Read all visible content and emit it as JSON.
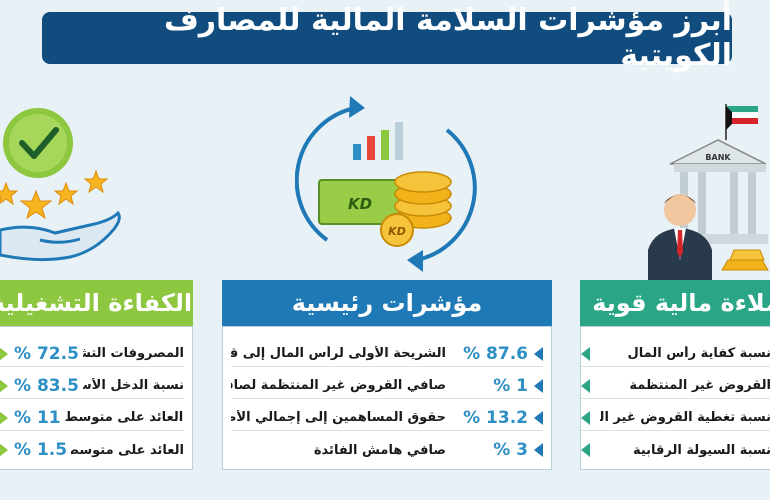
{
  "title": "أبرز مؤشرات السلامة المالية للمصارف الكويتية",
  "colors": {
    "title_bg": "#104c7e",
    "green_header": "#8dc63f",
    "blue_header": "#1f79b7",
    "teal_header": "#2aa687",
    "value_blue": "#2d8fc4"
  },
  "icons": [
    "checkmark-circle-icon",
    "stars-icon",
    "hand-icon",
    "refresh-arrows-icon",
    "bar-chart-icon",
    "banknote-icon",
    "coins-icon",
    "bank-building-icon",
    "kuwait-flag-icon",
    "businessman-icon",
    "gold-bars-icon"
  ],
  "bank_sign": "BANK",
  "currency": "KD",
  "panels": {
    "left": {
      "title": "الكفاءة التشغيلية",
      "rows": [
        {
          "value": "72.5",
          "unit": "%",
          "label": "المصروفات التشغيلية"
        },
        {
          "value": "83.5",
          "unit": "%",
          "label": "نسبة الدخل الأساسي"
        },
        {
          "value": "11",
          "unit": "%",
          "label": "العائد على متوسط"
        },
        {
          "value": "1.5",
          "unit": "%",
          "label": "العائد على متوسط"
        }
      ]
    },
    "middle": {
      "title": "مؤشرات رئيسية",
      "rows": [
        {
          "value": "87.6",
          "unit": "%",
          "label": "الشريحة الأولى لرأس المال إلى قاعدته"
        },
        {
          "value": "1",
          "unit": "%",
          "label": "صافي القروض غير المنتظمة لصافي القروض"
        },
        {
          "value": "13.2",
          "unit": "%",
          "label": "حقوق المساهمين إلى إجمالي الأصول"
        },
        {
          "value": "3",
          "unit": "%",
          "label": "صافي هامش الفائدة"
        }
      ]
    },
    "right": {
      "title": "ملاءة مالية قوية",
      "rows": [
        {
          "label": "نسبة كفاية رأس المال"
        },
        {
          "label": "القروض غير المنتظمة"
        },
        {
          "label": "نسبة تغطية القروض غير المنتظمة"
        },
        {
          "label": "نسبة السيولة الرقابية"
        }
      ]
    }
  }
}
